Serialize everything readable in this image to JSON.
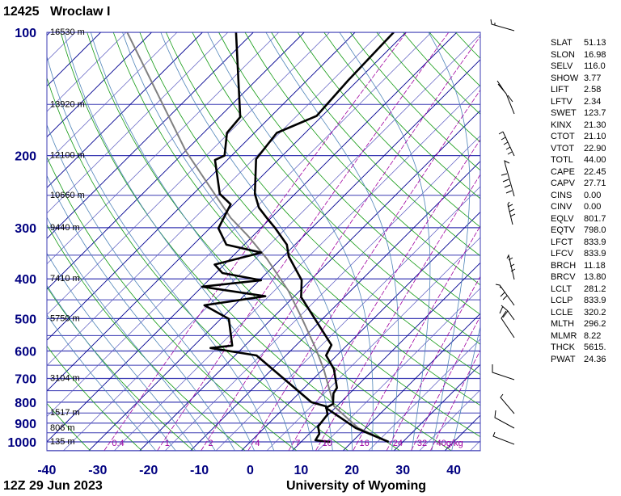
{
  "header": {
    "station_id": "12425",
    "station_name": "Wroclaw I"
  },
  "footer": {
    "time": "12Z 29 Jun 2023",
    "credit": "University of Wyoming"
  },
  "indices": [
    {
      "k": "SLAT",
      "v": "51.13"
    },
    {
      "k": "SLON",
      "v": "16.98"
    },
    {
      "k": "SELV",
      "v": "116.0"
    },
    {
      "k": "SHOW",
      "v": "3.77"
    },
    {
      "k": "LIFT",
      "v": "2.58"
    },
    {
      "k": "LFTV",
      "v": "2.34"
    },
    {
      "k": "SWET",
      "v": "123.7"
    },
    {
      "k": "KINX",
      "v": "21.30"
    },
    {
      "k": "CTOT",
      "v": "21.10"
    },
    {
      "k": "VTOT",
      "v": "22.90"
    },
    {
      "k": "TOTL",
      "v": "44.00"
    },
    {
      "k": "CAPE",
      "v": "22.45"
    },
    {
      "k": "CAPV",
      "v": "27.71"
    },
    {
      "k": "CINS",
      "v": "0.00"
    },
    {
      "k": "CINV",
      "v": "0.00"
    },
    {
      "k": "EQLV",
      "v": "801.7"
    },
    {
      "k": "EQTV",
      "v": "798.0"
    },
    {
      "k": "LFCT",
      "v": "833.9"
    },
    {
      "k": "LFCV",
      "v": "833.9"
    },
    {
      "k": "BRCH",
      "v": "11.18"
    },
    {
      "k": "BRCV",
      "v": "13.80"
    },
    {
      "k": "LCLT",
      "v": "281.2"
    },
    {
      "k": "LCLP",
      "v": "833.9"
    },
    {
      "k": "LCLE",
      "v": "320.2"
    },
    {
      "k": "MLTH",
      "v": "296.2"
    },
    {
      "k": "MLMR",
      "v": "8.22"
    },
    {
      "k": "THCK",
      "v": "5615."
    },
    {
      "k": "PWAT",
      "v": "24.36"
    }
  ],
  "chart_data": {
    "type": "skew-t",
    "pressure_ticks": [
      "100",
      "200",
      "300",
      "400",
      "500",
      "600",
      "700",
      "800",
      "900",
      "1000"
    ],
    "temperature_ticks": [
      "-40",
      "-30",
      "-20",
      "-10",
      "0",
      "10",
      "20",
      "30",
      "40"
    ],
    "pressure_range_hPa": [
      100,
      1050
    ],
    "temperature_range_at_1000hPa_C": [
      -40,
      44
    ],
    "pressure_scale": "log",
    "heights": [
      {
        "p": 100,
        "label": "16530 m"
      },
      {
        "p": 150,
        "label": "13920 m"
      },
      {
        "p": 200,
        "label": "12100 m"
      },
      {
        "p": 250,
        "label": "10660 m"
      },
      {
        "p": 300,
        "label": "9440 m"
      },
      {
        "p": 400,
        "label": "7410 m"
      },
      {
        "p": 500,
        "label": "5750 m"
      },
      {
        "p": 700,
        "label": "3104 m"
      },
      {
        "p": 850,
        "label": "1517 m"
      },
      {
        "p": 925,
        "label": "806 m"
      },
      {
        "p": 1000,
        "label": "135 m"
      }
    ],
    "mixing_ratio_labels": [
      {
        "w": 0.4,
        "label": "0.4"
      },
      {
        "w": 1,
        "label": "1"
      },
      {
        "w": 2,
        "label": "2"
      },
      {
        "w": 4,
        "label": "4"
      },
      {
        "w": 7,
        "label": "7"
      },
      {
        "w": 10,
        "label": "10"
      },
      {
        "w": 16,
        "label": "16"
      },
      {
        "w": 24,
        "label": "24"
      },
      {
        "w": 32,
        "label": "32"
      },
      {
        "w": 40,
        "label": "40g/kg"
      }
    ],
    "temperature": [
      [
        1000,
        27.2
      ],
      [
        925,
        18.0
      ],
      [
        826,
        8.2
      ],
      [
        808,
        8.8
      ],
      [
        761,
        6.8
      ],
      [
        738,
        6.4
      ],
      [
        664,
        2.1
      ],
      [
        615,
        -2.1
      ],
      [
        580,
        -3.1
      ],
      [
        443,
        -18.5
      ],
      [
        403,
        -21.7
      ],
      [
        352,
        -29.0
      ],
      [
        330,
        -31.6
      ],
      [
        301,
        -37.1
      ],
      [
        284,
        -40.8
      ],
      [
        268,
        -44.4
      ],
      [
        248,
        -47.9
      ],
      [
        204,
        -54.5
      ],
      [
        176,
        -55.6
      ],
      [
        160,
        -51.1
      ],
      [
        131,
        -51.9
      ],
      [
        100,
        -52.4
      ]
    ],
    "dewpoint": [
      [
        1000,
        15.7
      ],
      [
        991,
        12.5
      ],
      [
        956,
        12.0
      ],
      [
        917,
        10.3
      ],
      [
        857,
        9.8
      ],
      [
        819,
        7.9
      ],
      [
        800,
        4.2
      ],
      [
        615,
        -15.8
      ],
      [
        590,
        -26.3
      ],
      [
        582,
        -22.5
      ],
      [
        501,
        -28.4
      ],
      [
        464,
        -35.9
      ],
      [
        441,
        -25.7
      ],
      [
        418,
        -40.0
      ],
      [
        403,
        -29.7
      ],
      [
        387,
        -38.7
      ],
      [
        369,
        -41.9
      ],
      [
        345,
        -35.1
      ],
      [
        330,
        -43.5
      ],
      [
        301,
        -48.3
      ],
      [
        263,
        -50.6
      ],
      [
        248,
        -54.8
      ],
      [
        205,
        -62.4
      ],
      [
        200,
        -61.4
      ],
      [
        176,
        -65.4
      ],
      [
        161,
        -65.9
      ],
      [
        100,
        -83.4
      ]
    ],
    "parcel": [
      [
        1000,
        27.2
      ],
      [
        925,
        18.5
      ],
      [
        819,
        9.5
      ],
      [
        664,
        0.1
      ],
      [
        588,
        -5.8
      ],
      [
        497,
        -14.4
      ],
      [
        428,
        -22.2
      ],
      [
        357,
        -32.8
      ],
      [
        315,
        -40.8
      ],
      [
        284,
        -47.9
      ],
      [
        195,
        -69.9
      ],
      [
        100,
        -104.8
      ]
    ],
    "colors": {
      "axis_labels": "#000080",
      "isobar": "#3c3cb4",
      "isotherm": "#5a5ac0",
      "isotherm_major": "#000090",
      "dry_adiabat": "#139a13",
      "moist_adiabat": "#4f84b8",
      "mixing_ratio": "#a000a0",
      "temperature": "#000000",
      "dewpoint": "#000000",
      "parcel": "#808080"
    }
  }
}
